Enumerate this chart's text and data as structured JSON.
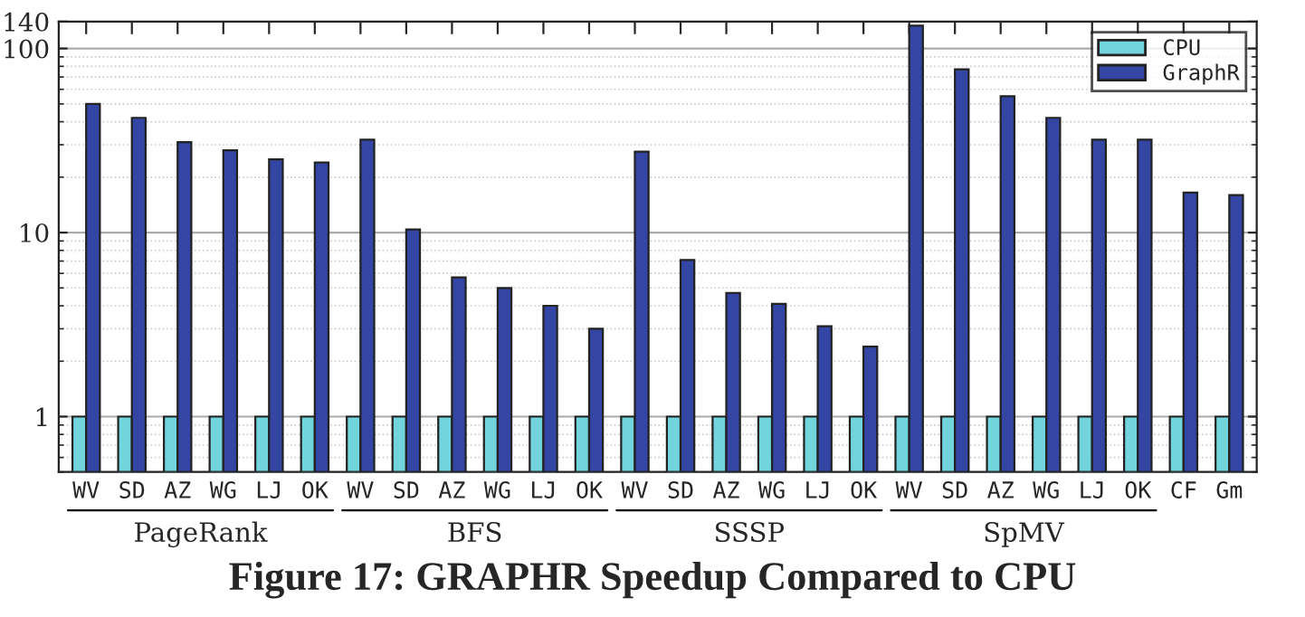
{
  "chart_data": {
    "type": "bar",
    "title": "Figure 17: GRAPHR Speedup Compared to CPU",
    "categories": [
      "WV",
      "SD",
      "AZ",
      "WG",
      "LJ",
      "OK",
      "WV",
      "SD",
      "AZ",
      "WG",
      "LJ",
      "OK",
      "WV",
      "SD",
      "AZ",
      "WG",
      "LJ",
      "OK",
      "WV",
      "SD",
      "AZ",
      "WG",
      "LJ",
      "OK",
      "CF",
      "Gm"
    ],
    "series": [
      {
        "name": "CPU",
        "color": "#72d4dc",
        "values": [
          1,
          1,
          1,
          1,
          1,
          1,
          1,
          1,
          1,
          1,
          1,
          1,
          1,
          1,
          1,
          1,
          1,
          1,
          1,
          1,
          1,
          1,
          1,
          1,
          1,
          1
        ]
      },
      {
        "name": "GraphR",
        "color": "#3346a3",
        "values": [
          50,
          42,
          31,
          28,
          25,
          24,
          32,
          10.4,
          5.7,
          5.0,
          4.0,
          3.0,
          27.5,
          7.1,
          4.7,
          4.1,
          3.1,
          2.4,
          133,
          77,
          55,
          42,
          32,
          32,
          16.5,
          16
        ]
      }
    ],
    "annotations": [
      "PageRank",
      "BFS",
      "SSSP",
      "SpMV"
    ],
    "log": true,
    "ylim": [
      0.5,
      140
    ],
    "yticks": [
      1,
      10,
      100,
      140
    ],
    "grid": "y",
    "legend": "top right"
  }
}
